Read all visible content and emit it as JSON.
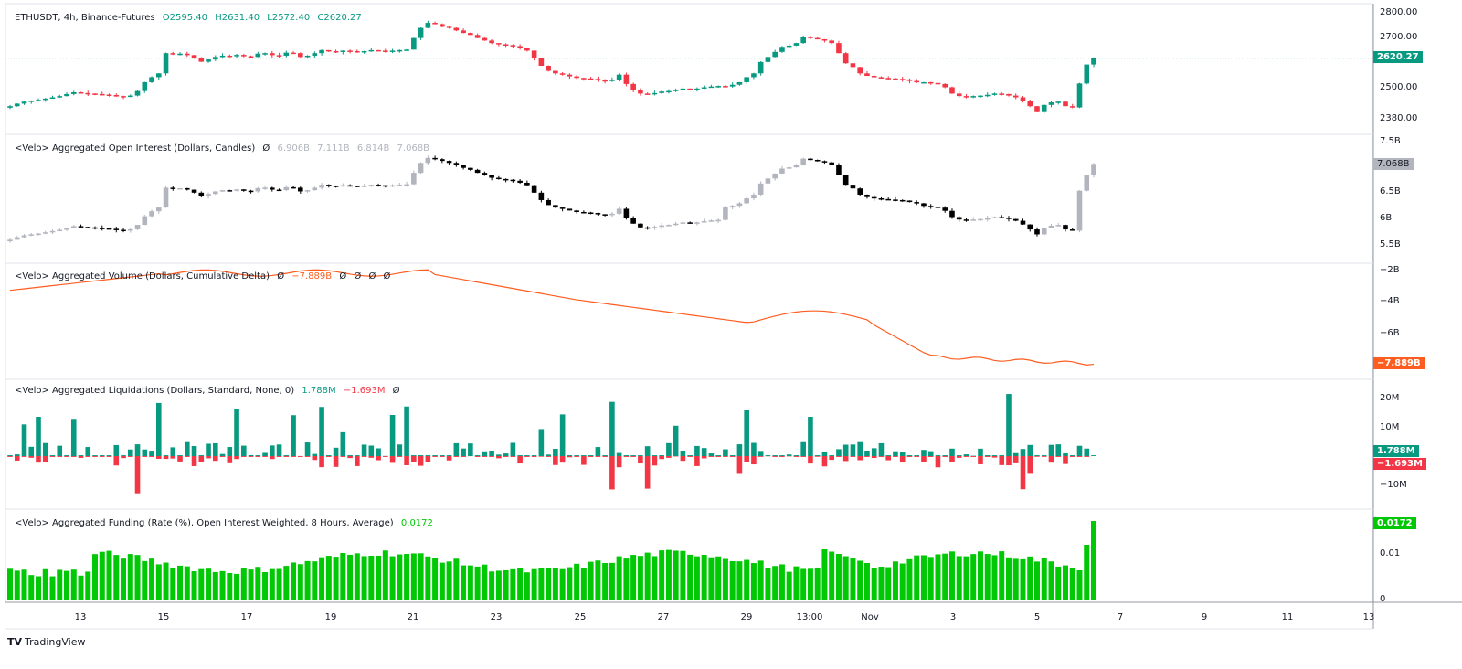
{
  "main": {
    "symbol": "ETHUSDT, 4h, Binance-Futures",
    "open": "O2595.40",
    "high": "H2631.40",
    "low": "L2572.40",
    "close": "C2620.27",
    "last_price_tag": "2620.27",
    "axis": [
      "2800.00",
      "2700.00",
      "2500.00",
      "2380.00"
    ]
  },
  "oi": {
    "title": "<Velo> Aggregated Open Interest (Dollars, Candles)",
    "dash": "Ø",
    "o": "6.906B",
    "h": "7.111B",
    "l": "6.814B",
    "c": "7.068B",
    "tag": "7.068B",
    "axis": [
      "7.5B",
      "6.5B",
      "6B",
      "5.5B"
    ]
  },
  "cvd": {
    "title": "<Velo> Aggregated Volume (Dollars, Cumulative Delta)",
    "dash": "Ø",
    "value": "−7.889B",
    "extra": [
      "Ø",
      "Ø",
      "Ø",
      "Ø"
    ],
    "tag": "−7.889B",
    "axis": [
      "−2B",
      "−4B",
      "−6B"
    ]
  },
  "liq": {
    "title": "<Velo> Aggregated Liquidations (Dollars, Standard, None, 0)",
    "long": "1.788M",
    "short": "−1.693M",
    "dash": "Ø",
    "tag_long": "1.788M",
    "tag_short": "−1.693M",
    "axis": [
      "20M",
      "10M",
      "−10M"
    ]
  },
  "funding": {
    "title": "<Velo> Aggregated Funding (Rate (%), Open Interest Weighted, 8 Hours, Average)",
    "value": "0.0172",
    "tag": "0.0172",
    "axis": [
      "0.01",
      "0"
    ]
  },
  "x_axis": [
    "13",
    "15",
    "17",
    "19",
    "21",
    "23",
    "25",
    "27",
    "29",
    "13:00",
    "Nov",
    "3",
    "5",
    "7",
    "9",
    "11",
    "13"
  ],
  "brand": "TradingView",
  "colors": {
    "up": "#089981",
    "down": "#F23645",
    "oi_up": "#B2B5BE",
    "oi_down": "#000000",
    "cvd": "#FF5D1F",
    "funding": "#00C805",
    "text": "#131722",
    "border": "#9598A1"
  },
  "chart_data": [
    {
      "type": "candlestick",
      "title": "ETHUSDT, 4h, Binance-Futures",
      "ylim": [
        2340,
        2820
      ],
      "yticks": [
        2380,
        2500,
        2700,
        2800
      ],
      "closes": [
        2430,
        2440,
        2448,
        2452,
        2455,
        2460,
        2465,
        2470,
        2478,
        2485,
        2482,
        2480,
        2478,
        2476,
        2474,
        2470,
        2468,
        2472,
        2490,
        2525,
        2545,
        2560,
        2640,
        2635,
        2638,
        2632,
        2620,
        2606,
        2615,
        2625,
        2630,
        2628,
        2633,
        2628,
        2625,
        2638,
        2640,
        2632,
        2630,
        2642,
        2640,
        2625,
        2630,
        2640,
        2652,
        2648,
        2645,
        2650,
        2648,
        2646,
        2648,
        2652,
        2650,
        2649,
        2650,
        2652,
        2654,
        2700,
        2740,
        2760,
        2755,
        2748,
        2740,
        2730,
        2720,
        2712,
        2700,
        2690,
        2680,
        2675,
        2672,
        2668,
        2660,
        2650,
        2620,
        2590,
        2570,
        2560,
        2555,
        2548,
        2542,
        2540,
        2538,
        2533,
        2530,
        2535,
        2555,
        2518,
        2495,
        2480,
        2478,
        2482,
        2488,
        2490,
        2495,
        2500,
        2498,
        2500,
        2505,
        2508,
        2510,
        2508,
        2515,
        2525,
        2545,
        2560,
        2605,
        2625,
        2645,
        2665,
        2670,
        2680,
        2705,
        2700,
        2695,
        2690,
        2680,
        2640,
        2600,
        2585,
        2560,
        2550,
        2545,
        2542,
        2540,
        2538,
        2536,
        2530,
        2525,
        2525,
        2522,
        2518,
        2505,
        2480,
        2470,
        2468,
        2470,
        2472,
        2475,
        2480,
        2478,
        2472,
        2465,
        2450,
        2430,
        2410,
        2435,
        2445,
        2448,
        2430,
        2425,
        2520,
        2595,
        2620
      ],
      "last": 2620.27
    },
    {
      "type": "candlestick",
      "title": "Aggregated Open Interest (Dollars)",
      "ylim": [
        5.35,
        7.6
      ],
      "yticks": [
        5.5,
        6,
        6.5,
        7.5
      ],
      "last": 7.068
    },
    {
      "type": "line",
      "title": "Aggregated Volume (Cumulative Delta)",
      "ylim": [
        -8.5,
        -1.5
      ],
      "yticks": [
        -2,
        -4,
        -6
      ],
      "last": -7.889
    },
    {
      "type": "bar",
      "title": "Aggregated Liquidations",
      "ylim": [
        -15,
        25
      ],
      "yticks": [
        -10,
        10,
        20
      ],
      "last_long": 1.788,
      "last_short": -1.693
    },
    {
      "type": "bar",
      "title": "Aggregated Funding Rate (%)",
      "ylim": [
        0,
        0.018
      ],
      "yticks": [
        0,
        0.01
      ],
      "last": 0.0172
    }
  ]
}
